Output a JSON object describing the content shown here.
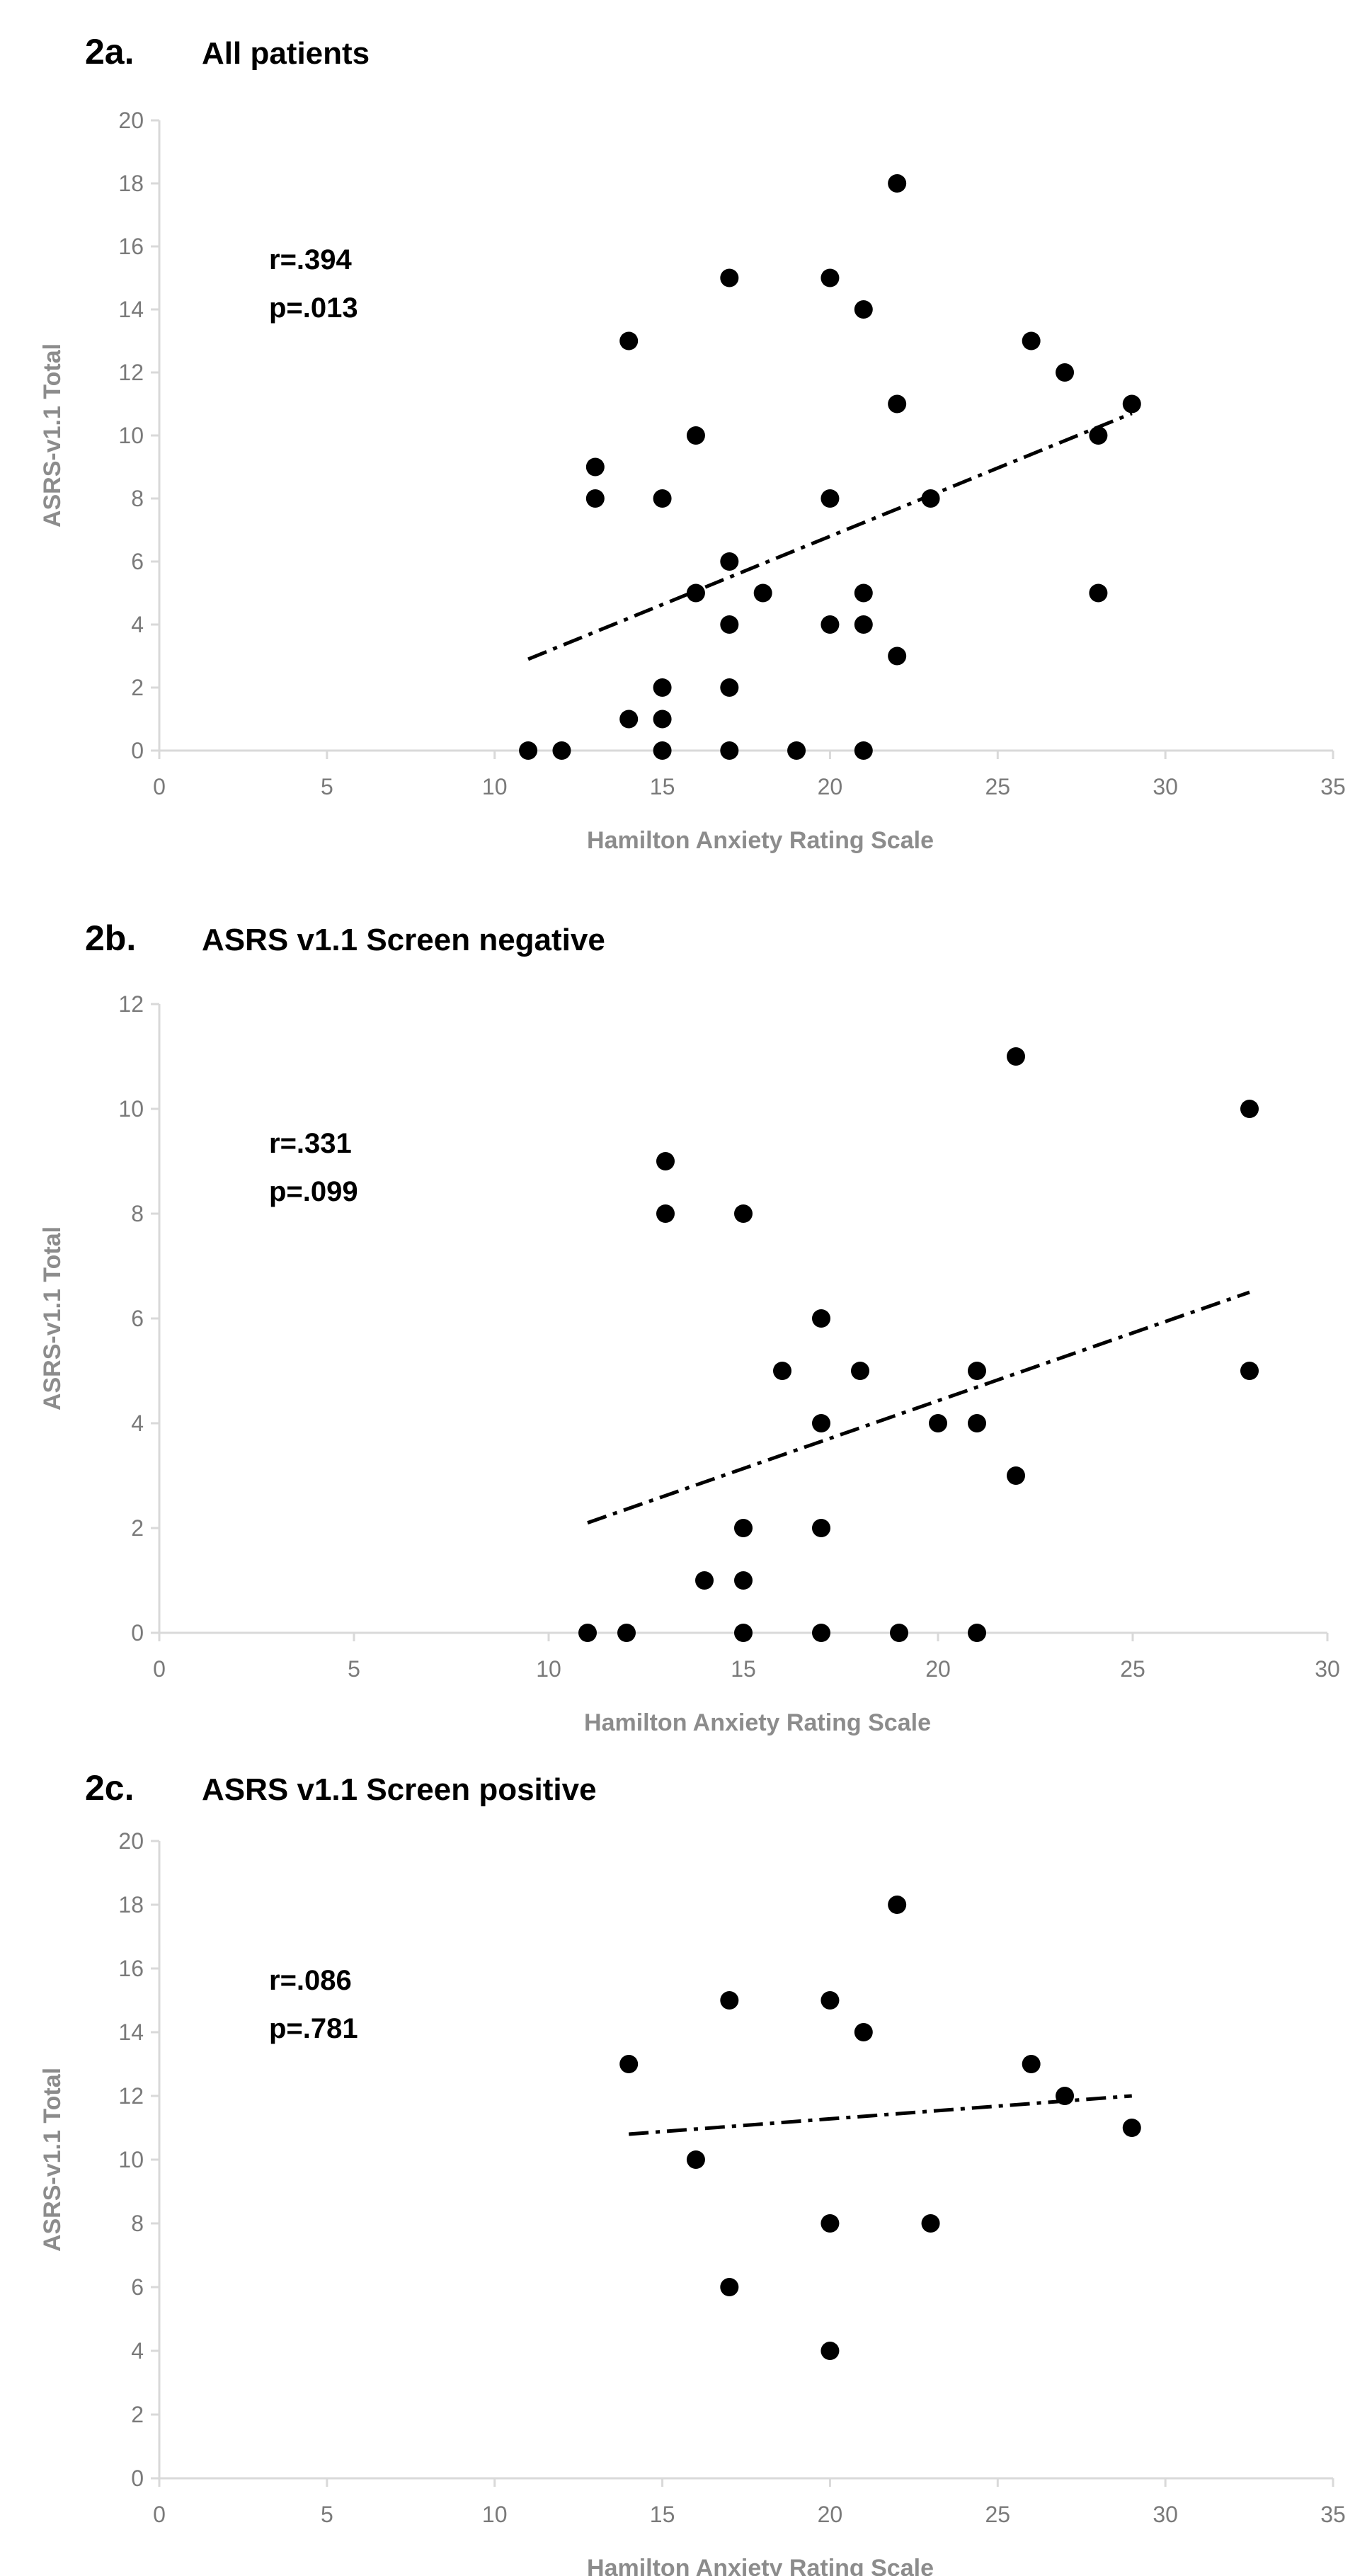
{
  "chart_data": [
    {
      "type": "scatter",
      "panel_label": "2a.",
      "title": "All patients",
      "xlabel": "Hamilton Anxiety Rating Scale",
      "ylabel": "ASRS-v1.1 Total",
      "xlim": [
        0,
        35
      ],
      "ylim": [
        0,
        20
      ],
      "xticks": [
        0,
        5,
        10,
        15,
        20,
        25,
        30,
        35
      ],
      "yticks": [
        0,
        2,
        4,
        6,
        8,
        10,
        12,
        14,
        16,
        18,
        20
      ],
      "stat_r": "r=.394",
      "stat_p": "p=.013",
      "points": [
        [
          11,
          0
        ],
        [
          12,
          0
        ],
        [
          14,
          1
        ],
        [
          15,
          0
        ],
        [
          15,
          1
        ],
        [
          15,
          2
        ],
        [
          17,
          0
        ],
        [
          17,
          2
        ],
        [
          19,
          0
        ],
        [
          21,
          0
        ],
        [
          16,
          5
        ],
        [
          17,
          4
        ],
        [
          17,
          6
        ],
        [
          18,
          5
        ],
        [
          20,
          4
        ],
        [
          21,
          4
        ],
        [
          21,
          5
        ],
        [
          22,
          3
        ],
        [
          28,
          5
        ],
        [
          13,
          8
        ],
        [
          13,
          9
        ],
        [
          15,
          8
        ],
        [
          16,
          10
        ],
        [
          20,
          8
        ],
        [
          23,
          8
        ],
        [
          22,
          11
        ],
        [
          28,
          10
        ],
        [
          29,
          11
        ],
        [
          27,
          12
        ],
        [
          26,
          13
        ],
        [
          14,
          13
        ],
        [
          17,
          15
        ],
        [
          20,
          15
        ],
        [
          21,
          14
        ],
        [
          22,
          18
        ]
      ],
      "trendline": [
        [
          11,
          2.9
        ],
        [
          29,
          10.7
        ]
      ]
    },
    {
      "type": "scatter",
      "panel_label": "2b.",
      "title": "ASRS v1.1 Screen negative",
      "xlabel": "Hamilton Anxiety Rating Scale",
      "ylabel": "ASRS-v1.1 Total",
      "xlim": [
        0,
        30
      ],
      "ylim": [
        0,
        12
      ],
      "xticks": [
        0,
        5,
        10,
        15,
        20,
        25,
        30
      ],
      "yticks": [
        0,
        2,
        4,
        6,
        8,
        10,
        12
      ],
      "stat_r": "r=.331",
      "stat_p": "p=.099",
      "points": [
        [
          11,
          0
        ],
        [
          12,
          0
        ],
        [
          15,
          0
        ],
        [
          17,
          0
        ],
        [
          19,
          0
        ],
        [
          21,
          0
        ],
        [
          14,
          1
        ],
        [
          15,
          1
        ],
        [
          15,
          2
        ],
        [
          17,
          2
        ],
        [
          22,
          3
        ],
        [
          17,
          4
        ],
        [
          20,
          4
        ],
        [
          21,
          4
        ],
        [
          16,
          5
        ],
        [
          18,
          5
        ],
        [
          21,
          5
        ],
        [
          28,
          5
        ],
        [
          17,
          6
        ],
        [
          13,
          8
        ],
        [
          15,
          8
        ],
        [
          13,
          9
        ],
        [
          28,
          10
        ],
        [
          22,
          11
        ]
      ],
      "trendline": [
        [
          11,
          2.1
        ],
        [
          28,
          6.5
        ]
      ]
    },
    {
      "type": "scatter",
      "panel_label": "2c.",
      "title": "ASRS v1.1 Screen positive",
      "xlabel": "Hamilton Anxiety Rating Scale",
      "ylabel": "ASRS-v1.1 Total",
      "xlim": [
        0,
        35
      ],
      "ylim": [
        0,
        20
      ],
      "xticks": [
        0,
        5,
        10,
        15,
        20,
        25,
        30,
        35
      ],
      "yticks": [
        0,
        2,
        4,
        6,
        8,
        10,
        12,
        14,
        16,
        18,
        20
      ],
      "stat_r": "r=.086",
      "stat_p": "p=.781",
      "points": [
        [
          14,
          13
        ],
        [
          16,
          10
        ],
        [
          17,
          6
        ],
        [
          17,
          15
        ],
        [
          20,
          4
        ],
        [
          20,
          8
        ],
        [
          20,
          15
        ],
        [
          21,
          14
        ],
        [
          22,
          18
        ],
        [
          23,
          8
        ],
        [
          26,
          13
        ],
        [
          27,
          12
        ],
        [
          29,
          11
        ]
      ],
      "trendline": [
        [
          14,
          10.8
        ],
        [
          29,
          12.0
        ]
      ]
    }
  ],
  "colors": {
    "point": "#000000",
    "trendline": "#000000",
    "axis": "#d9d9d9",
    "tick_text": "#7a7a7a",
    "axis_title": "#8c8c8c"
  }
}
